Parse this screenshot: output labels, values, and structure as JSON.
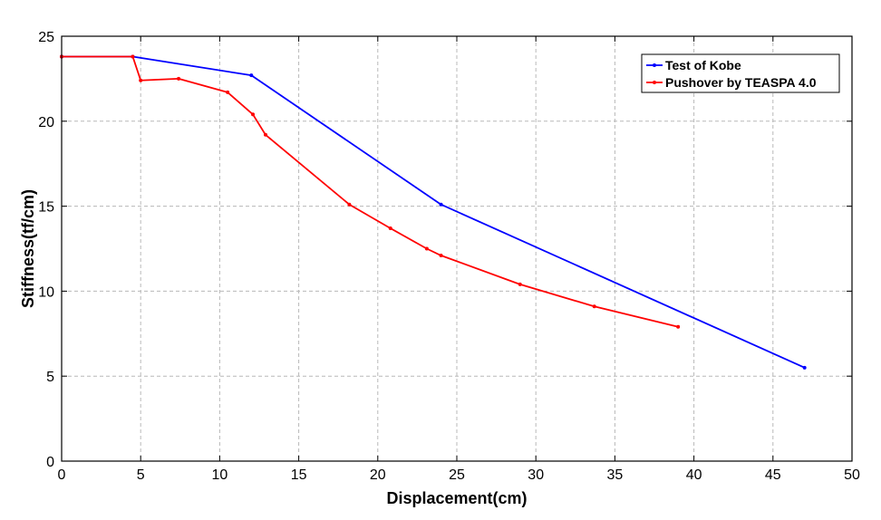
{
  "chart_data": {
    "type": "line",
    "title": "",
    "xlabel": "Displacement(cm)",
    "ylabel": "Stiffness(tf/cm)",
    "xlim": [
      0,
      50
    ],
    "ylim": [
      0,
      25
    ],
    "xticks": [
      0,
      5,
      10,
      15,
      20,
      25,
      30,
      35,
      40,
      45,
      50
    ],
    "yticks": [
      0,
      5,
      10,
      15,
      20,
      25
    ],
    "grid": true,
    "legend_position": "top-right",
    "series": [
      {
        "name": "Test of Kobe",
        "color": "#0000ff",
        "x": [
          0,
          4.5,
          12,
          24,
          47
        ],
        "y": [
          23.8,
          23.8,
          22.7,
          15.1,
          5.5
        ]
      },
      {
        "name": "Pushover by TEASPA 4.0",
        "color": "#ff0000",
        "x": [
          0,
          4.5,
          5,
          7.4,
          10.5,
          12.1,
          12.9,
          18.2,
          20.8,
          23.1,
          24,
          29,
          33.7,
          39
        ],
        "y": [
          23.8,
          23.8,
          22.4,
          22.5,
          21.7,
          20.4,
          19.2,
          15.1,
          13.7,
          12.5,
          12.1,
          10.4,
          9.1,
          7.9
        ]
      }
    ]
  }
}
